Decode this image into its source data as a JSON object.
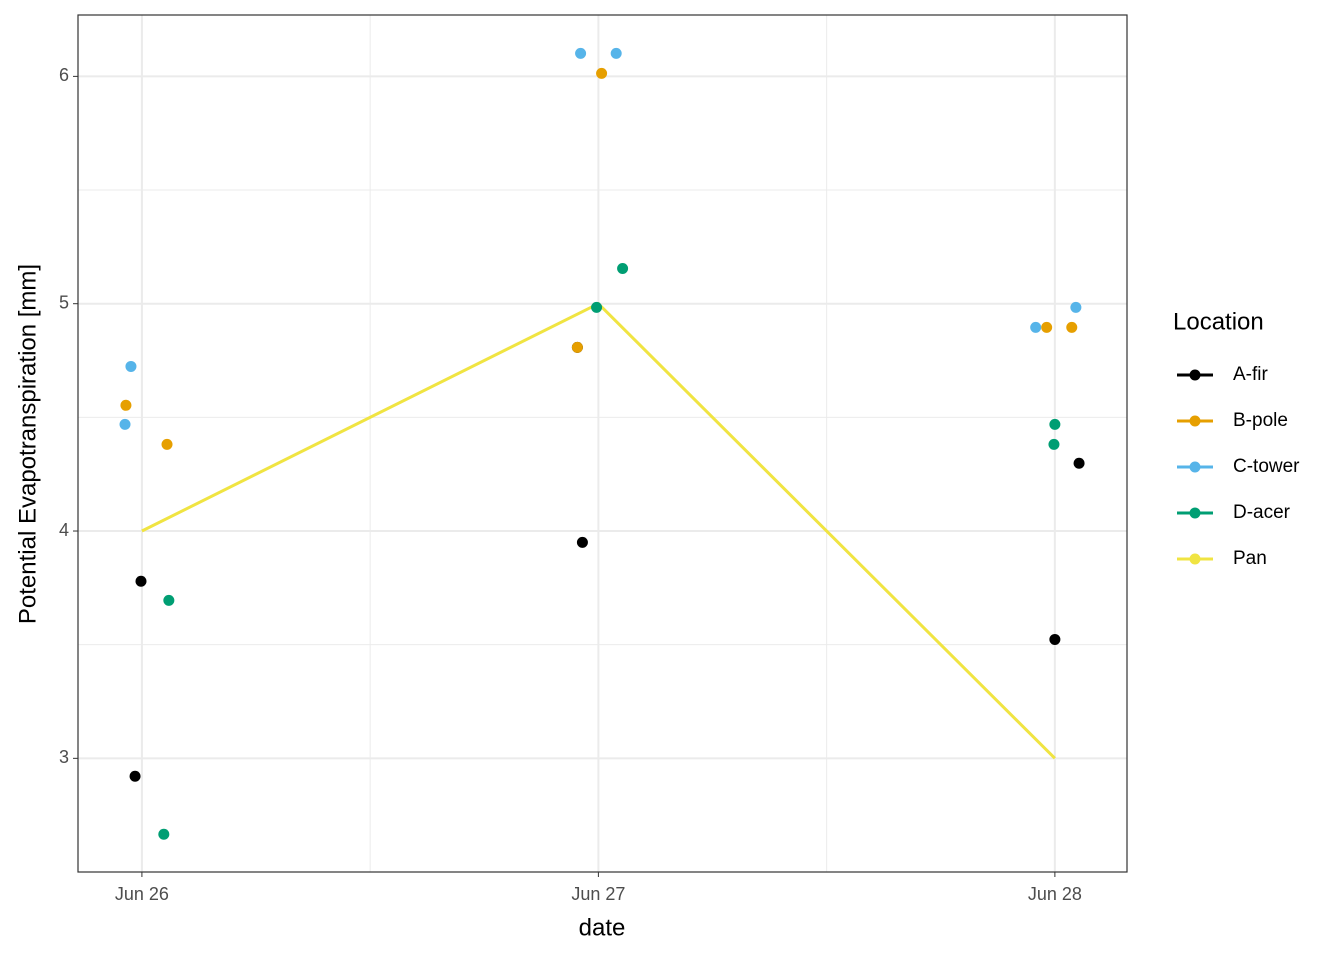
{
  "chart_data": {
    "type": "scatter",
    "x_label": "date",
    "y_label": "Potential Evapotranspiration [mm]",
    "legend_title": "Location",
    "legend_position": "right",
    "xlim": [
      25.86,
      28.158
    ],
    "ylim": [
      2.5,
      6.27
    ],
    "xticks": [
      {
        "value": 26,
        "label": "Jun 26"
      },
      {
        "value": 27,
        "label": "Jun 27"
      },
      {
        "value": 28,
        "label": "Jun 28"
      }
    ],
    "yticks": [
      3,
      4,
      5,
      6
    ],
    "grid": true,
    "minor_grid": true,
    "series": [
      {
        "name": "A-fir",
        "color": "#000000",
        "mode": "points",
        "x": [
          25.998,
          25.985,
          26.965,
          26.954,
          28.0,
          28.053
        ],
        "values": [
          3.779,
          2.921,
          3.95,
          4.808,
          3.523,
          4.298
        ]
      },
      {
        "name": "B-pole",
        "color": "#E69F00",
        "mode": "points",
        "x": [
          25.965,
          26.055,
          26.954,
          27.007,
          27.982,
          28.037
        ],
        "values": [
          4.553,
          4.381,
          4.808,
          6.013,
          4.896,
          4.896
        ]
      },
      {
        "name": "C-tower",
        "color": "#56B4E9",
        "mode": "points",
        "x": [
          25.963,
          25.976,
          26.961,
          27.039,
          27.958,
          28.046
        ],
        "values": [
          4.469,
          4.724,
          6.101,
          6.101,
          4.896,
          4.984
        ]
      },
      {
        "name": "D-acer",
        "color": "#009E73",
        "mode": "points",
        "x": [
          26.059,
          26.048,
          26.996,
          27.053,
          28.0,
          27.998
        ],
        "values": [
          3.695,
          2.666,
          4.984,
          5.155,
          4.469,
          4.381
        ]
      },
      {
        "name": "Pan",
        "color": "#F0E442",
        "mode": "line",
        "x": [
          26,
          27,
          28
        ],
        "values": [
          4.0,
          5.0,
          3.0
        ]
      }
    ]
  }
}
